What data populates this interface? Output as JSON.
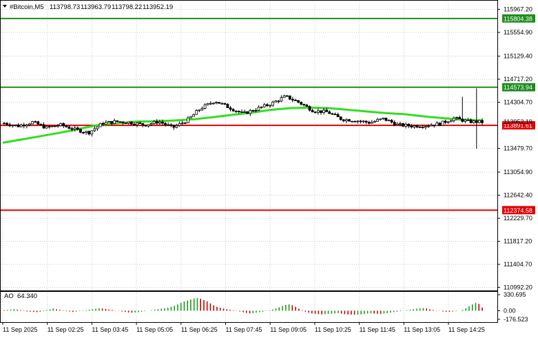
{
  "chart_data": {
    "type": "candlestick",
    "symbol_label": "#Bitcoin,M5",
    "ohlc_text": [
      "113798.73",
      "113963.79",
      "113798.22",
      "113952.19"
    ],
    "price_axis": {
      "range": [
        110950,
        116110
      ],
      "ticks": [
        "115967.20",
        "115554.90",
        "115129.40",
        "114717.20",
        "114304.70",
        "113479.70",
        "113054.90",
        "112642.40",
        "112229.70",
        "111817.20",
        "111404.70",
        "110992.20"
      ]
    },
    "time_axis": {
      "ticks": [
        "11 Sep 2025",
        "11 Sep 02:25",
        "11 Sep 03:45",
        "11 Sep 05:05",
        "11 Sep 06:25",
        "11 Sep 07:45",
        "11 Sep 09:05",
        "11 Sep 10:25",
        "11 Sep 11:45",
        "11 Sep 13:05",
        "11 Sep 14:25"
      ]
    },
    "levels": [
      {
        "price": 115804.38,
        "label": "115804.38",
        "color": "#1f8c1f"
      },
      {
        "price": 114573.94,
        "label": "114573.94",
        "color": "#1f8c1f"
      },
      {
        "price": 113891.61,
        "label": "113891.61",
        "color": "#e00000"
      },
      {
        "price": 112374.58,
        "label": "112374.58",
        "color": "#e00000"
      }
    ],
    "current_price": "113952.19",
    "moving_average": {
      "color": "#33dd22",
      "values": [
        113580,
        113640,
        113700,
        113760,
        113830,
        113900,
        113930,
        113960,
        113965,
        113980,
        114000,
        114040,
        114080,
        114120,
        114170,
        114200,
        114210,
        114200,
        114170,
        114140,
        114110,
        114090,
        114050,
        114020,
        113990,
        113980
      ]
    },
    "candles_close": [
      113930,
      113880,
      113950,
      113850,
      113900,
      113820,
      113760,
      113930,
      113960,
      113940,
      113900,
      113960,
      113850,
      113980,
      114200,
      114330,
      114210,
      114100,
      114190,
      114280,
      114410,
      114300,
      114150,
      114130,
      114000,
      113980,
      113940,
      114010,
      113900,
      113880,
      113890,
      113920,
      114020,
      113960,
      113950
    ],
    "indicator": {
      "name": "AO",
      "value_label": "64.340",
      "range": [
        -220,
        360
      ],
      "ticks": [
        "330.695",
        "0.00",
        "-176.523"
      ],
      "values": [
        10,
        15,
        22,
        30,
        20,
        12,
        -8,
        -15,
        -20,
        -25,
        -30,
        -25,
        -10,
        15,
        30,
        45,
        30,
        18,
        8,
        -10,
        -15,
        -25,
        -18,
        -8,
        6,
        12,
        22,
        30,
        40,
        50,
        45,
        35,
        25,
        15,
        5,
        -5,
        -15,
        -25,
        -35,
        -40,
        -35,
        -30,
        -20,
        -10,
        0,
        10,
        20,
        30,
        40,
        50,
        60,
        80,
        100,
        130,
        160,
        190,
        210,
        230,
        250,
        260,
        245,
        220,
        190,
        150,
        110,
        80,
        60,
        45,
        30,
        20,
        10,
        -5,
        -15,
        -30,
        -45,
        -55,
        -50,
        -40,
        -30,
        -20,
        -5,
        10,
        25,
        45,
        70,
        95,
        120,
        130,
        110,
        80,
        40,
        10,
        -20,
        -40,
        -55,
        -65,
        -70,
        -75,
        -70,
        -65,
        -60,
        -55,
        -50,
        -60,
        -70,
        -75,
        -80,
        -82,
        -80,
        -75,
        -68,
        -60,
        -55,
        -58,
        -62,
        -66,
        -60,
        -50,
        -40,
        -30,
        -20,
        -10,
        0,
        10,
        20,
        30,
        40,
        50,
        55,
        45,
        30,
        15,
        5,
        -5,
        -15,
        -20,
        -22,
        -18,
        -10,
        0,
        20,
        50,
        90,
        130,
        160,
        140,
        64
      ]
    }
  }
}
